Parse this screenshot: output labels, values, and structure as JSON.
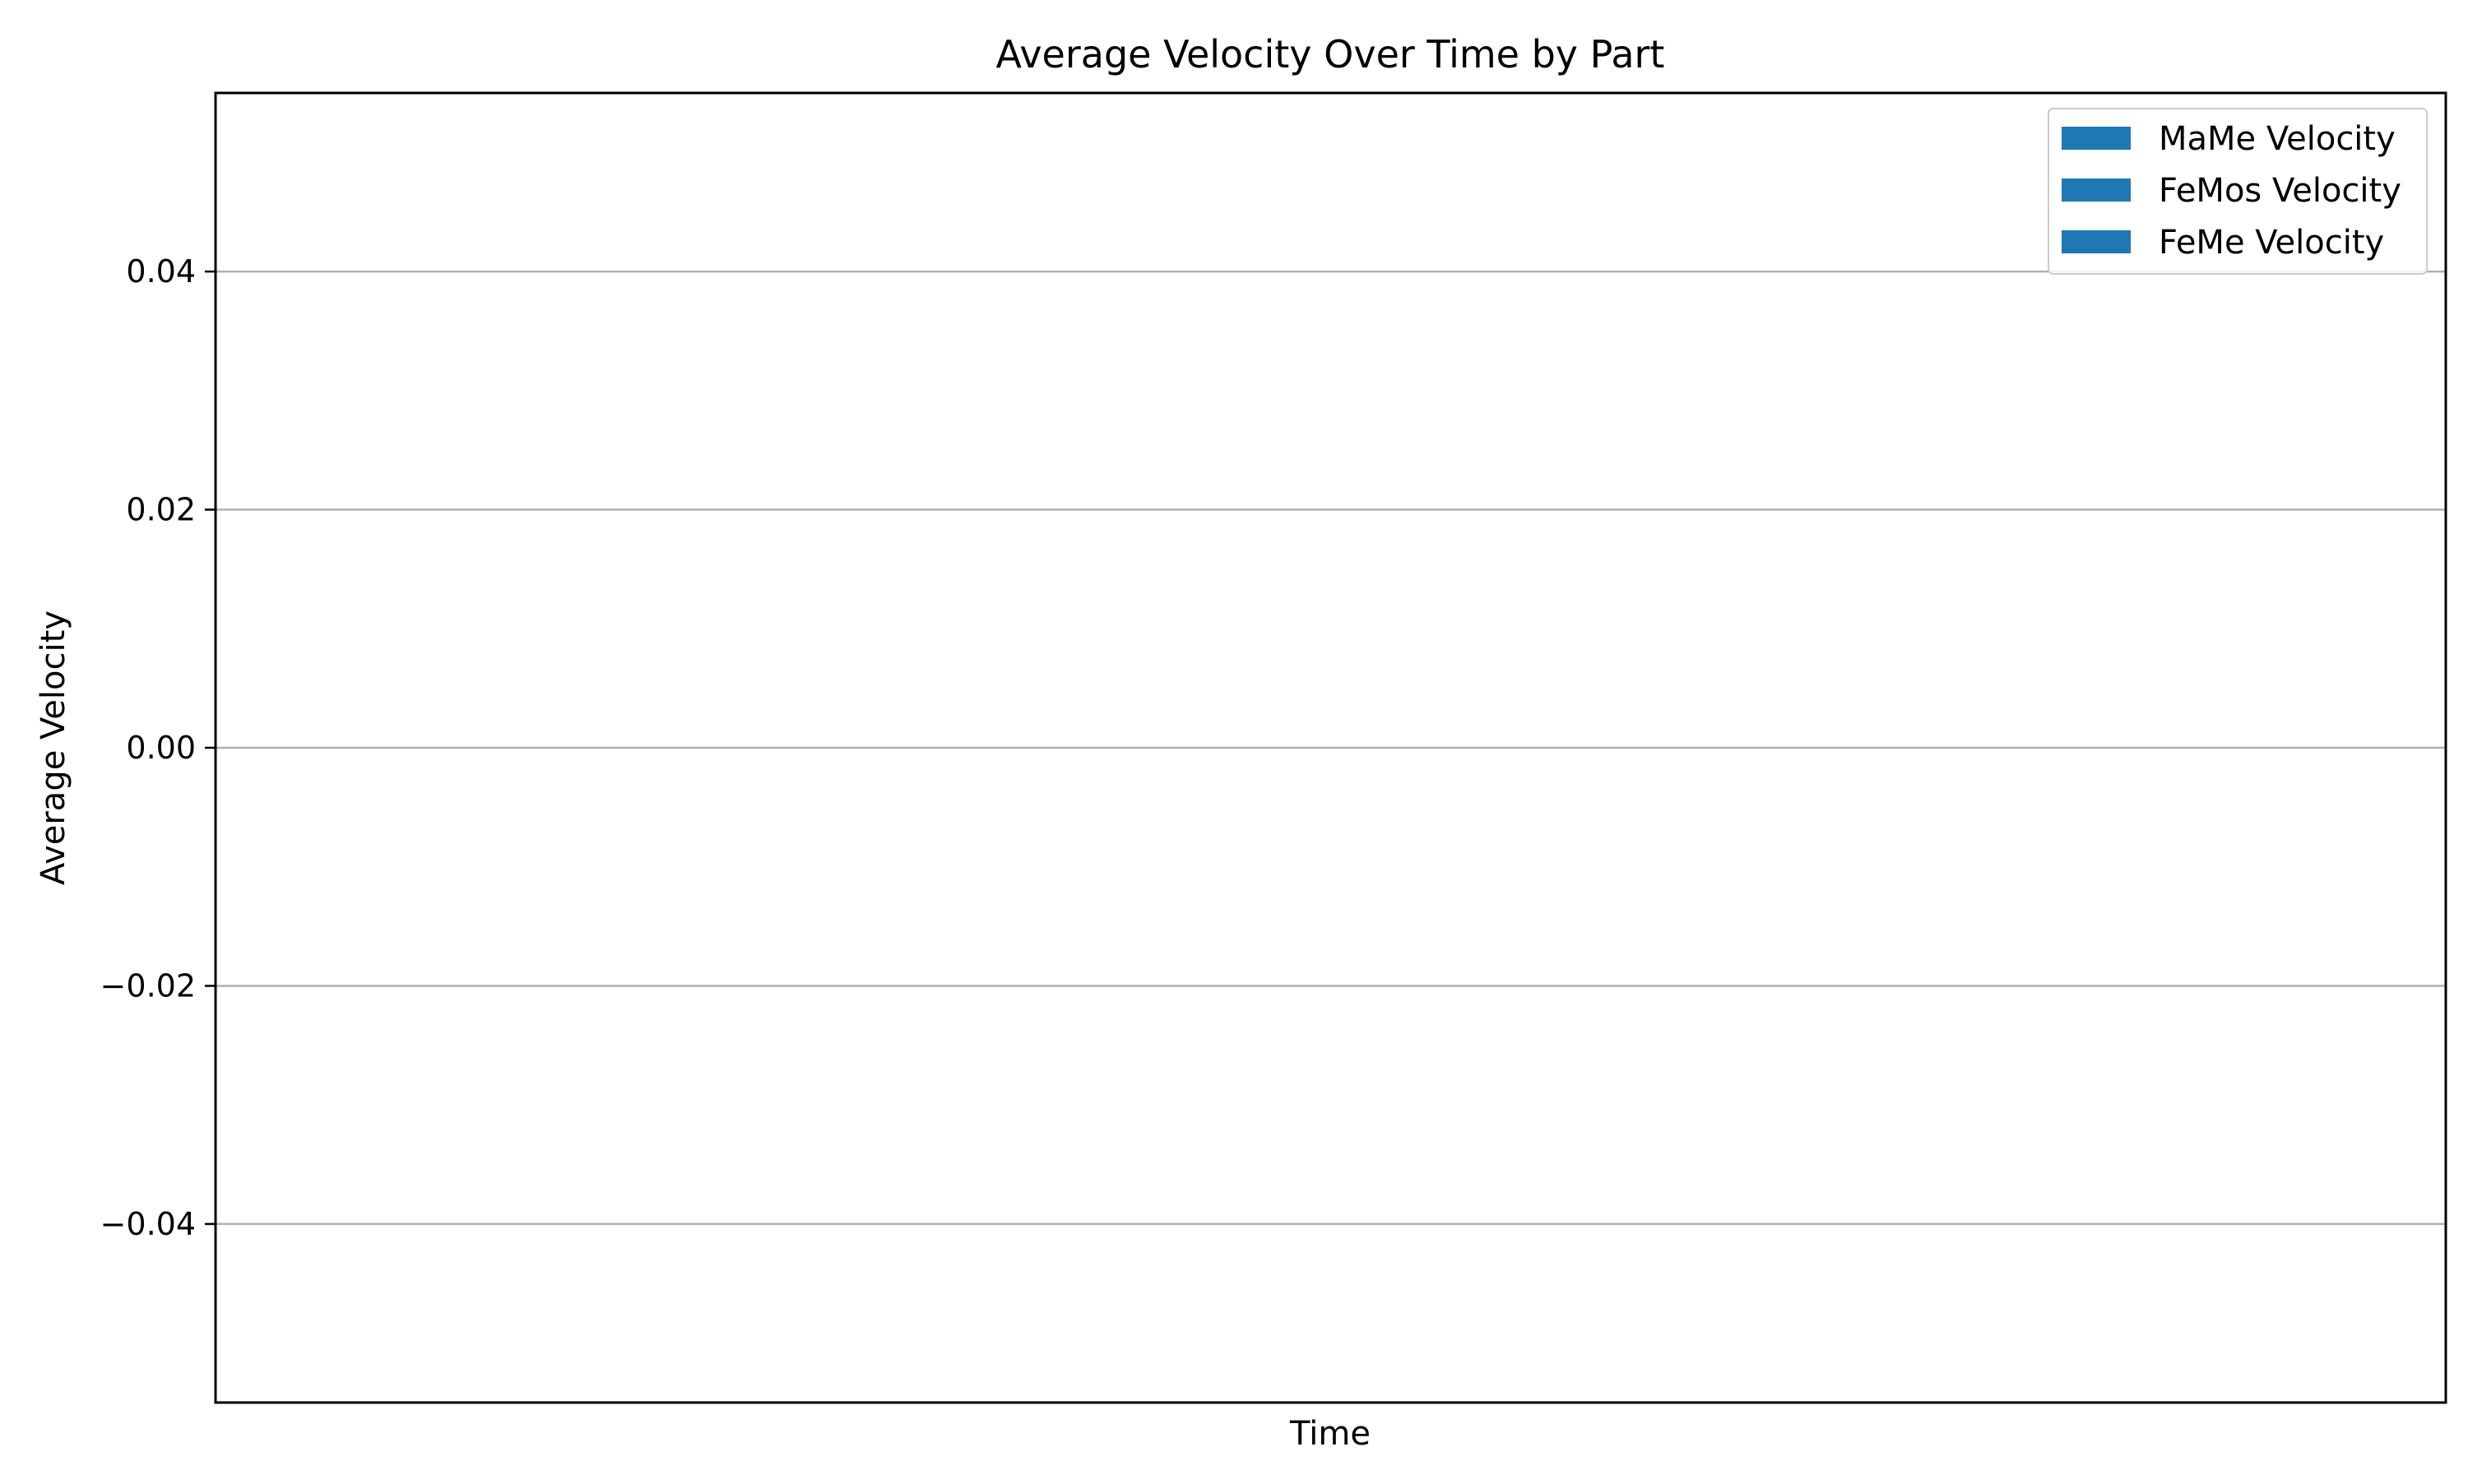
{
  "chart_data": {
    "type": "bar",
    "title": "Average Velocity Over Time by Part",
    "xlabel": "Time",
    "ylabel": "Average Velocity",
    "categories": [],
    "series": [
      {
        "name": "MaMe Velocity",
        "values": []
      },
      {
        "name": "FeMos Velocity",
        "values": []
      },
      {
        "name": "FeMe Velocity",
        "values": []
      }
    ],
    "ylim": [
      -0.055,
      0.055
    ],
    "yticks": [
      -0.04,
      -0.02,
      0.0,
      0.02,
      0.04
    ],
    "ytick_labels": [
      "−0.04",
      "−0.02",
      "0.00",
      "0.02",
      "0.04"
    ],
    "grid": {
      "y": true,
      "x": false
    },
    "legend_position": "top-right",
    "colors": {
      "series": [
        "#1f77b4",
        "#1f77b4",
        "#1f77b4"
      ],
      "grid": "#b0b0b0",
      "axes": "#000000",
      "background": "#ffffff"
    }
  }
}
